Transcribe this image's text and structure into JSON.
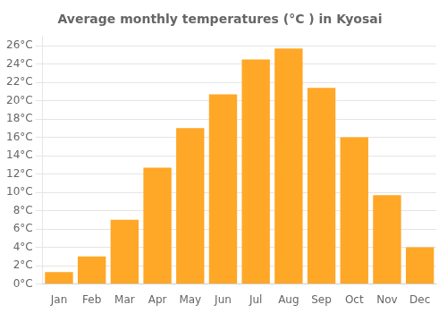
{
  "chart_data": {
    "type": "bar",
    "title": "Average monthly temperatures (°C ) in Kyosai",
    "categories": [
      "Jan",
      "Feb",
      "Mar",
      "Apr",
      "May",
      "Jun",
      "Jul",
      "Aug",
      "Sep",
      "Oct",
      "Nov",
      "Dec"
    ],
    "values": [
      1.3,
      3.0,
      7.0,
      12.7,
      17.0,
      20.7,
      24.5,
      25.7,
      21.4,
      16.0,
      9.7,
      4.0
    ],
    "color": "#FFA726",
    "ylim": [
      0,
      27
    ],
    "yticks": [
      {
        "value": 0,
        "label": "0°C"
      },
      {
        "value": 2,
        "label": "2°C"
      },
      {
        "value": 4,
        "label": "4°C"
      },
      {
        "value": 6,
        "label": "6°C"
      },
      {
        "value": 8,
        "label": "8°C"
      },
      {
        "value": 10,
        "label": "10°C"
      },
      {
        "value": 12,
        "label": "12°C"
      },
      {
        "value": 14,
        "label": "14°C"
      },
      {
        "value": 16,
        "label": "16°C"
      },
      {
        "value": 18,
        "label": "18°C"
      },
      {
        "value": 20,
        "label": "20°C"
      },
      {
        "value": 22,
        "label": "22°C"
      },
      {
        "value": 24,
        "label": "24°C"
      },
      {
        "value": 26,
        "label": "26°C"
      }
    ],
    "grid": true
  }
}
